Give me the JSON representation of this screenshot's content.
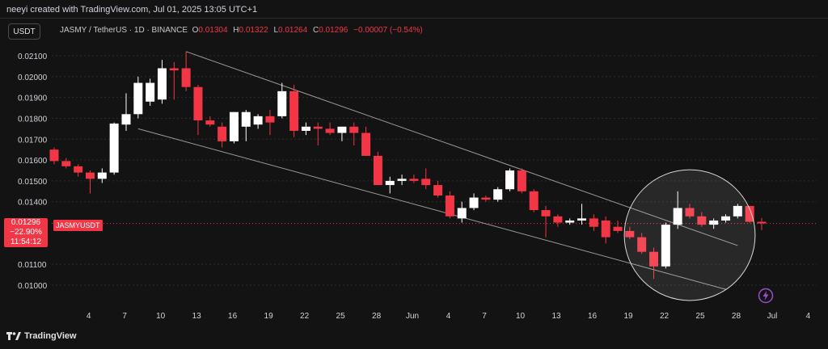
{
  "header": {
    "attribution": "neeyi created with TradingView.com, Jul 01, 2025 13:05 UTC+1"
  },
  "toolbar": {
    "currency_label": "USDT"
  },
  "symbol": {
    "name": "JASMY / TetherUS · 1D · BINANCE",
    "o_label": "O",
    "o": "0.01304",
    "h_label": "H",
    "h": "0.01322",
    "l_label": "L",
    "l": "0.01264",
    "c_label": "C",
    "c": "0.01296",
    "change": "−0.00007 (−0.54%)"
  },
  "price_badge": {
    "price": "0.01296",
    "change_pct": "−22.90%",
    "countdown": "11:54:12",
    "ticker_tag": "JASMYUSDT"
  },
  "footer": {
    "brand": "TradingView"
  },
  "colors": {
    "background": "#131313",
    "up": "#ffffff",
    "down": "#f23645",
    "trendline": "#9a9a9a",
    "grid": "#2e2e2e",
    "accent": "#9b4dca"
  },
  "icons": {
    "logo": "tradingview-logo-icon",
    "flash": "flash-icon"
  },
  "chart_data": {
    "type": "candlestick",
    "x_ticks": [
      "4",
      "7",
      "10",
      "13",
      "16",
      "19",
      "22",
      "25",
      "28",
      "Jun",
      "4",
      "7",
      "10",
      "13",
      "16",
      "19",
      "22",
      "25",
      "28",
      "Jul",
      "4"
    ],
    "y_ticks": [
      "0.02100",
      "0.02000",
      "0.01900",
      "0.01800",
      "0.01700",
      "0.01600",
      "0.01500",
      "0.01400",
      "0.01100",
      "0.01000"
    ],
    "ylim": [
      0.0094,
      0.0216
    ],
    "current_price": 0.01296,
    "candles": [
      {
        "o": 0.0165,
        "h": 0.0166,
        "l": 0.0158,
        "c": 0.01595
      },
      {
        "o": 0.01595,
        "h": 0.0161,
        "l": 0.0156,
        "c": 0.0157
      },
      {
        "o": 0.0157,
        "h": 0.0158,
        "l": 0.0152,
        "c": 0.0154
      },
      {
        "o": 0.0154,
        "h": 0.0155,
        "l": 0.0144,
        "c": 0.0151
      },
      {
        "o": 0.0151,
        "h": 0.0156,
        "l": 0.0149,
        "c": 0.0154
      },
      {
        "o": 0.0154,
        "h": 0.0178,
        "l": 0.0153,
        "c": 0.01775
      },
      {
        "o": 0.0177,
        "h": 0.0192,
        "l": 0.0174,
        "c": 0.0182
      },
      {
        "o": 0.0182,
        "h": 0.02,
        "l": 0.018,
        "c": 0.0197
      },
      {
        "o": 0.0188,
        "h": 0.0199,
        "l": 0.0186,
        "c": 0.0197
      },
      {
        "o": 0.0189,
        "h": 0.0208,
        "l": 0.0187,
        "c": 0.0204
      },
      {
        "o": 0.0204,
        "h": 0.0207,
        "l": 0.0189,
        "c": 0.0203
      },
      {
        "o": 0.0204,
        "h": 0.0212,
        "l": 0.0193,
        "c": 0.0195
      },
      {
        "o": 0.0195,
        "h": 0.0196,
        "l": 0.0172,
        "c": 0.0179
      },
      {
        "o": 0.0179,
        "h": 0.0181,
        "l": 0.0176,
        "c": 0.0177
      },
      {
        "o": 0.0176,
        "h": 0.0178,
        "l": 0.0166,
        "c": 0.0169
      },
      {
        "o": 0.0169,
        "h": 0.0183,
        "l": 0.0168,
        "c": 0.0183
      },
      {
        "o": 0.0176,
        "h": 0.0184,
        "l": 0.0169,
        "c": 0.0183
      },
      {
        "o": 0.0177,
        "h": 0.0182,
        "l": 0.0175,
        "c": 0.0181
      },
      {
        "o": 0.0181,
        "h": 0.0184,
        "l": 0.0172,
        "c": 0.0178
      },
      {
        "o": 0.0181,
        "h": 0.0197,
        "l": 0.018,
        "c": 0.0193
      },
      {
        "o": 0.0193,
        "h": 0.0196,
        "l": 0.0171,
        "c": 0.0174
      },
      {
        "o": 0.0174,
        "h": 0.0178,
        "l": 0.0172,
        "c": 0.0176
      },
      {
        "o": 0.0176,
        "h": 0.0178,
        "l": 0.0167,
        "c": 0.0175
      },
      {
        "o": 0.0175,
        "h": 0.0178,
        "l": 0.0172,
        "c": 0.0173
      },
      {
        "o": 0.0173,
        "h": 0.0176,
        "l": 0.0169,
        "c": 0.0176
      },
      {
        "o": 0.0176,
        "h": 0.0178,
        "l": 0.0167,
        "c": 0.0173
      },
      {
        "o": 0.0173,
        "h": 0.0176,
        "l": 0.0162,
        "c": 0.0162
      },
      {
        "o": 0.0162,
        "h": 0.0164,
        "l": 0.0148,
        "c": 0.0148
      },
      {
        "o": 0.0148,
        "h": 0.0152,
        "l": 0.0144,
        "c": 0.015
      },
      {
        "o": 0.015,
        "h": 0.0153,
        "l": 0.0148,
        "c": 0.0151
      },
      {
        "o": 0.0151,
        "h": 0.0153,
        "l": 0.0149,
        "c": 0.015
      },
      {
        "o": 0.0151,
        "h": 0.0156,
        "l": 0.0146,
        "c": 0.0148
      },
      {
        "o": 0.0148,
        "h": 0.015,
        "l": 0.0142,
        "c": 0.0143
      },
      {
        "o": 0.0143,
        "h": 0.0145,
        "l": 0.0132,
        "c": 0.0133
      },
      {
        "o": 0.0132,
        "h": 0.014,
        "l": 0.013,
        "c": 0.0137
      },
      {
        "o": 0.0137,
        "h": 0.0144,
        "l": 0.0136,
        "c": 0.0142
      },
      {
        "o": 0.0142,
        "h": 0.0143,
        "l": 0.014,
        "c": 0.0141
      },
      {
        "o": 0.0141,
        "h": 0.0147,
        "l": 0.014,
        "c": 0.0146
      },
      {
        "o": 0.0146,
        "h": 0.0156,
        "l": 0.0145,
        "c": 0.0155
      },
      {
        "o": 0.0155,
        "h": 0.0156,
        "l": 0.0144,
        "c": 0.0145
      },
      {
        "o": 0.0145,
        "h": 0.0146,
        "l": 0.0135,
        "c": 0.0136
      },
      {
        "o": 0.0136,
        "h": 0.0138,
        "l": 0.0123,
        "c": 0.0133
      },
      {
        "o": 0.0133,
        "h": 0.0134,
        "l": 0.0128,
        "c": 0.013
      },
      {
        "o": 0.013,
        "h": 0.0132,
        "l": 0.0129,
        "c": 0.0131
      },
      {
        "o": 0.0131,
        "h": 0.0139,
        "l": 0.0129,
        "c": 0.0132
      },
      {
        "o": 0.0132,
        "h": 0.0134,
        "l": 0.0126,
        "c": 0.0128
      },
      {
        "o": 0.0131,
        "h": 0.0133,
        "l": 0.012,
        "c": 0.0123
      },
      {
        "o": 0.0128,
        "h": 0.0131,
        "l": 0.0125,
        "c": 0.0126
      },
      {
        "o": 0.0126,
        "h": 0.0128,
        "l": 0.0122,
        "c": 0.0123
      },
      {
        "o": 0.0123,
        "h": 0.0125,
        "l": 0.0115,
        "c": 0.0116
      },
      {
        "o": 0.0116,
        "h": 0.0118,
        "l": 0.0103,
        "c": 0.0109
      },
      {
        "o": 0.0109,
        "h": 0.013,
        "l": 0.0108,
        "c": 0.0129
      },
      {
        "o": 0.0129,
        "h": 0.0145,
        "l": 0.0127,
        "c": 0.0137
      },
      {
        "o": 0.0137,
        "h": 0.0139,
        "l": 0.0132,
        "c": 0.0133
      },
      {
        "o": 0.0133,
        "h": 0.0135,
        "l": 0.0128,
        "c": 0.0129
      },
      {
        "o": 0.0129,
        "h": 0.0132,
        "l": 0.0127,
        "c": 0.0131
      },
      {
        "o": 0.0131,
        "h": 0.0134,
        "l": 0.013,
        "c": 0.0133
      },
      {
        "o": 0.0133,
        "h": 0.0139,
        "l": 0.0132,
        "c": 0.0138
      },
      {
        "o": 0.0138,
        "h": 0.0138,
        "l": 0.013,
        "c": 0.01304
      },
      {
        "o": 0.01304,
        "h": 0.01322,
        "l": 0.01264,
        "c": 0.01296
      }
    ],
    "trendlines": [
      {
        "from": {
          "x": "May 13",
          "y": 0.0212
        },
        "to": {
          "x": "Jun 29",
          "y": 0.0119
        }
      },
      {
        "from": {
          "x": "May 9",
          "y": 0.0175
        },
        "to": {
          "x": "Jun 28",
          "y": 0.0098
        }
      }
    ],
    "highlight_circle": {
      "center_x": "Jun 25",
      "center_y": 0.0124,
      "radius_days": 4.4
    },
    "grid": true
  }
}
